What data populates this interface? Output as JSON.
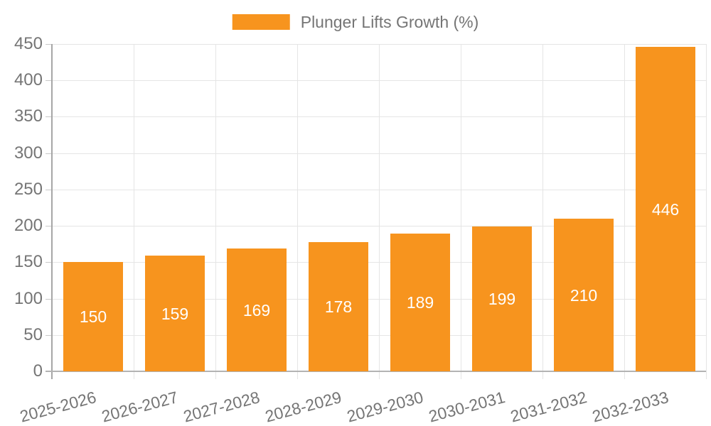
{
  "colors": {
    "bar": "#F7941E",
    "label_text": "#757575",
    "value_text": "#FFFFFF",
    "grid": "#E5E5E5",
    "axis": "#A6A6A6",
    "baseline": "#B3B3B3",
    "tick": "#C9C9C9",
    "background": "#FFFFFF"
  },
  "chart_data": {
    "type": "bar",
    "title": "",
    "legend": {
      "position": "top",
      "label": "Plunger Lifts Growth (%)",
      "swatch_color": "#F7941E"
    },
    "categories": [
      "2025-2026",
      "2026-2027",
      "2027-2028",
      "2028-2029",
      "2029-2030",
      "2030-2031",
      "2031-2032",
      "2032-2033"
    ],
    "series": [
      {
        "name": "Plunger Lifts Growth (%)",
        "values": [
          150,
          159,
          169,
          178,
          189,
          199,
          210,
          446
        ]
      }
    ],
    "values": [
      150,
      159,
      169,
      178,
      189,
      199,
      210,
      446
    ],
    "xlabel": "",
    "ylabel": "",
    "ylim": [
      0,
      450
    ],
    "yticks": [
      0,
      50,
      100,
      150,
      200,
      250,
      300,
      350,
      400,
      450
    ],
    "grid": "both",
    "value_labels": "inside-center",
    "x_label_rotation_deg": -15
  }
}
